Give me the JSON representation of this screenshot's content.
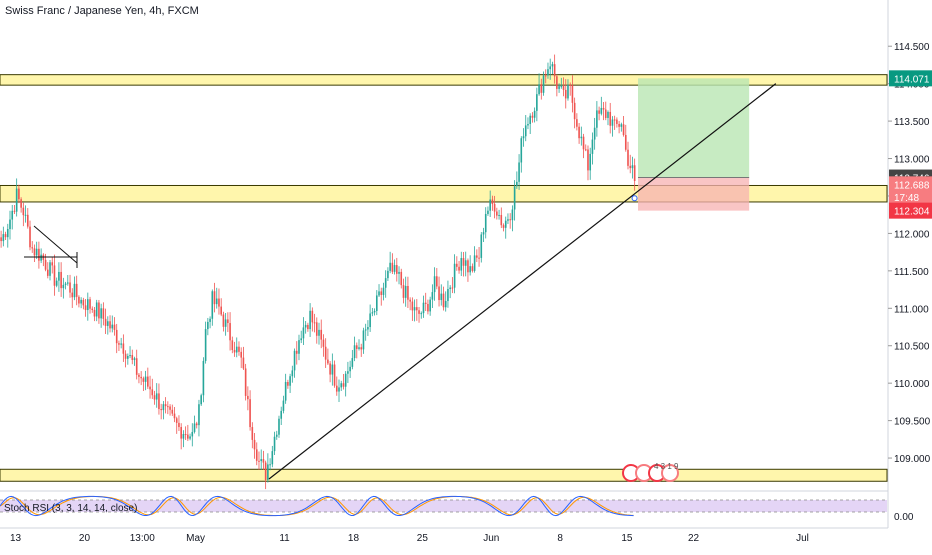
{
  "header": {
    "title": "Swiss Franc / Japanese Yen, 4h, FXCM"
  },
  "indicator": {
    "label": "Stoch RSI (3, 3, 14, 14, close)",
    "axis_label": "0.00"
  },
  "colors": {
    "up": "#26a69a",
    "down": "#ef5350",
    "zone_fill": "#fff59d",
    "zone_border": "#3a3a00",
    "target_fill": "#b9e6b3",
    "stop_fill": "#f7b2b2",
    "target_badge": "#089981",
    "stop_badge": "#f23645",
    "last_badge": "#444444",
    "close_badge": "#f77c80",
    "rsi_band": "#e1d0f5",
    "stoch_k": "#2962ff",
    "stoch_d": "#ff9800"
  },
  "badges": {
    "target": "114.071",
    "last": "112.746",
    "close": "112.688",
    "countdown": "17:48",
    "stop": "112.304"
  },
  "event_markers": {
    "numbers": "4 3 1 9"
  },
  "chart_data": {
    "type": "candlestick",
    "title": "Swiss Franc / Japanese Yen, 4h, FXCM",
    "ylim": [
      108.6,
      114.85
    ],
    "y_ticks": [
      109.0,
      109.5,
      110.0,
      110.5,
      111.0,
      111.5,
      112.0,
      112.5,
      113.0,
      113.5,
      114.0,
      114.5
    ],
    "y_tick_labels": [
      "109.000",
      "109.500",
      "110.000",
      "110.500",
      "111.000",
      "111.500",
      "112.000",
      "112.500",
      "113.000",
      "113.500",
      "114.000",
      "114.500"
    ],
    "x_ticks": [
      {
        "label": "13",
        "bar": 7
      },
      {
        "label": "20",
        "bar": 38
      },
      {
        "label": "13:00",
        "bar": 64
      },
      {
        "label": "May",
        "bar": 88
      },
      {
        "label": "11",
        "bar": 128
      },
      {
        "label": "18",
        "bar": 159
      },
      {
        "label": "25",
        "bar": 190
      },
      {
        "label": "Jun",
        "bar": 221
      },
      {
        "label": "8",
        "bar": 252
      },
      {
        "label": "15",
        "bar": 282
      },
      {
        "label": "22",
        "bar": 312
      },
      {
        "label": "Jul",
        "bar": 361
      }
    ],
    "bars_total": 400,
    "anchors": [
      [
        0,
        111.9
      ],
      [
        4,
        112.2
      ],
      [
        7,
        112.5
      ],
      [
        10,
        112.3
      ],
      [
        14,
        111.8
      ],
      [
        18,
        111.7
      ],
      [
        24,
        111.4
      ],
      [
        30,
        111.3
      ],
      [
        36,
        111.1
      ],
      [
        42,
        111.0
      ],
      [
        48,
        110.8
      ],
      [
        55,
        110.5
      ],
      [
        62,
        110.1
      ],
      [
        68,
        109.9
      ],
      [
        74,
        109.6
      ],
      [
        80,
        109.4
      ],
      [
        86,
        109.3
      ],
      [
        89,
        109.6
      ],
      [
        92,
        110.7
      ],
      [
        95,
        111.1
      ],
      [
        98,
        111.0
      ],
      [
        102,
        110.7
      ],
      [
        108,
        110.3
      ],
      [
        112,
        109.5
      ],
      [
        116,
        108.95
      ],
      [
        119,
        108.8
      ],
      [
        122,
        109.15
      ],
      [
        126,
        109.7
      ],
      [
        131,
        110.3
      ],
      [
        135,
        110.7
      ],
      [
        139,
        110.9
      ],
      [
        143,
        110.6
      ],
      [
        147,
        110.3
      ],
      [
        151,
        110.0
      ],
      [
        155,
        110.1
      ],
      [
        159,
        110.4
      ],
      [
        163,
        110.6
      ],
      [
        167,
        110.9
      ],
      [
        171,
        111.2
      ],
      [
        175,
        111.5
      ],
      [
        179,
        111.4
      ],
      [
        183,
        111.1
      ],
      [
        187,
        110.9
      ],
      [
        191,
        111.0
      ],
      [
        195,
        111.3
      ],
      [
        199,
        111.1
      ],
      [
        203,
        111.4
      ],
      [
        207,
        111.7
      ],
      [
        211,
        111.5
      ],
      [
        215,
        111.7
      ],
      [
        218,
        112.3
      ],
      [
        222,
        112.4
      ],
      [
        226,
        112.1
      ],
      [
        229,
        112.3
      ],
      [
        232,
        112.7
      ],
      [
        235,
        113.4
      ],
      [
        238,
        113.6
      ],
      [
        241,
        113.8
      ],
      [
        244,
        114.1
      ],
      [
        247,
        114.3
      ],
      [
        250,
        114.0
      ],
      [
        253,
        113.8
      ],
      [
        256,
        113.9
      ],
      [
        259,
        113.5
      ],
      [
        262,
        113.1
      ],
      [
        264,
        112.9
      ],
      [
        267,
        113.5
      ],
      [
        270,
        113.6
      ],
      [
        273,
        113.6
      ],
      [
        276,
        113.4
      ],
      [
        279,
        113.5
      ],
      [
        281,
        113.1
      ],
      [
        283,
        112.9
      ],
      [
        285,
        112.75
      ]
    ],
    "zones": [
      {
        "name": "resistance",
        "low": 113.98,
        "high": 114.12
      },
      {
        "name": "support",
        "low": 112.42,
        "high": 112.64
      },
      {
        "name": "base",
        "low": 108.69,
        "high": 108.85
      }
    ],
    "trendline": {
      "from": {
        "bar": 121,
        "price": 108.72
      },
      "to": {
        "bar": 349,
        "price": 114.0
      }
    },
    "position": {
      "start_bar": 287,
      "end_bar": 337,
      "entry": 112.746,
      "target": 114.071,
      "stop": 112.304
    },
    "stoch_rsi": {
      "range": [
        0,
        100
      ],
      "levels": [
        20,
        80
      ]
    }
  }
}
